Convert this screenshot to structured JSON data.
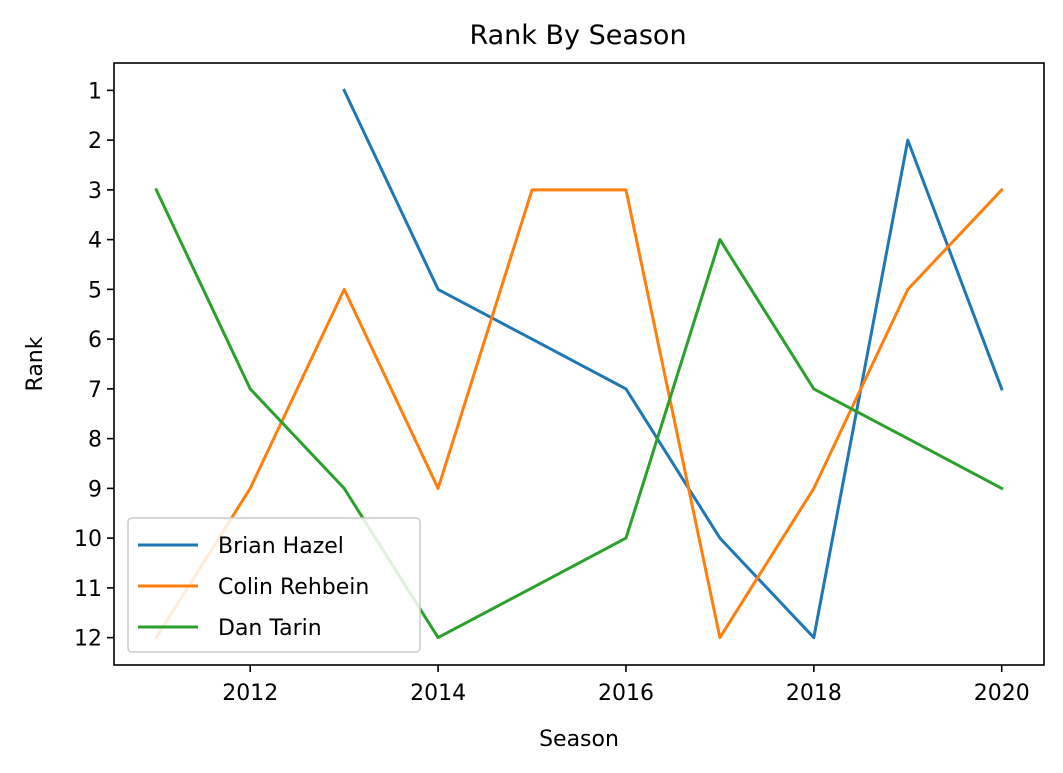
{
  "chart_data": {
    "type": "line",
    "title": "Rank By Season",
    "xlabel": "Season",
    "ylabel": "Rank",
    "xlim": [
      2010.55,
      2020.45
    ],
    "ylim": [
      12.55,
      0.45
    ],
    "y_inverted": true,
    "grid": false,
    "legend_position": "lower-left",
    "x_ticks": [
      2012,
      2014,
      2016,
      2018,
      2020
    ],
    "y_ticks": [
      1,
      2,
      3,
      4,
      5,
      6,
      7,
      8,
      9,
      10,
      11,
      12
    ],
    "series": [
      {
        "name": "Brian Hazel",
        "color": "#1f77b4",
        "x": [
          2013,
          2014,
          2015,
          2016,
          2017,
          2018,
          2019,
          2020
        ],
        "y": [
          1,
          5,
          6,
          7,
          10,
          12,
          2,
          7
        ]
      },
      {
        "name": "Colin Rehbein",
        "color": "#ff7f0e",
        "x": [
          2011,
          2012,
          2013,
          2014,
          2015,
          2016,
          2017,
          2018,
          2019,
          2020
        ],
        "y": [
          12,
          9,
          5,
          9,
          3,
          3,
          12,
          9,
          5,
          3
        ]
      },
      {
        "name": "Dan Tarin",
        "color": "#2ca02c",
        "x": [
          2011,
          2012,
          2013,
          2014,
          2015,
          2016,
          2017,
          2018,
          2019,
          2020
        ],
        "y": [
          3,
          7,
          9,
          12,
          11,
          10,
          4,
          7,
          8,
          9
        ]
      }
    ]
  }
}
